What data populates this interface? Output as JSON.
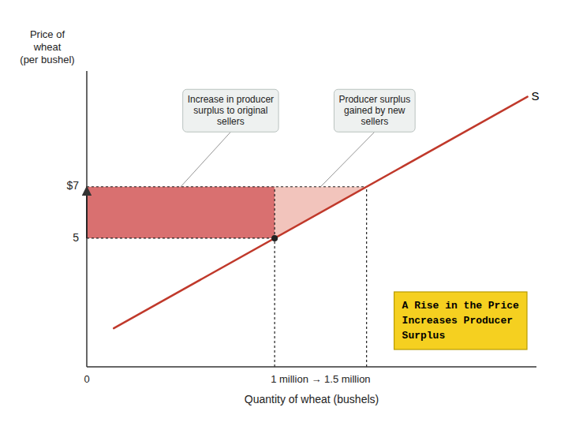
{
  "chart_data": {
    "type": "line",
    "title": "A Rise in the Price\nIncreases Producer\nSurplus",
    "title_color": "#f5d020",
    "x_label": "Quantity of wheat (bushels)",
    "y_label": "Price of\nwheat\n(per bushel)",
    "series": [
      {
        "name": "S",
        "color": "#c0392b",
        "x": [
          0.15,
          2.45
        ],
        "values": [
          1.5,
          10.5
        ]
      }
    ],
    "prices": [
      5,
      7
    ],
    "quantities": [
      1.0444444444444445,
      1.5555555555555556
    ],
    "regions": [
      {
        "annotation": "Increase in producer\nsurplus to original\nsellers",
        "color": "#d97070"
      },
      {
        "annotation": "Producer surplus\ngained by new\nsellers",
        "color": "#f2c4bc"
      }
    ],
    "xlim": [
      0,
      2.5
    ],
    "ylim": [
      0,
      11.5
    ],
    "xticks": [
      0,
      {
        "value": 1.3,
        "label": "1 million → 1.5 million"
      }
    ],
    "yticks": [
      5,
      {
        "value": 7,
        "label": "$7"
      }
    ],
    "grid": false
  }
}
